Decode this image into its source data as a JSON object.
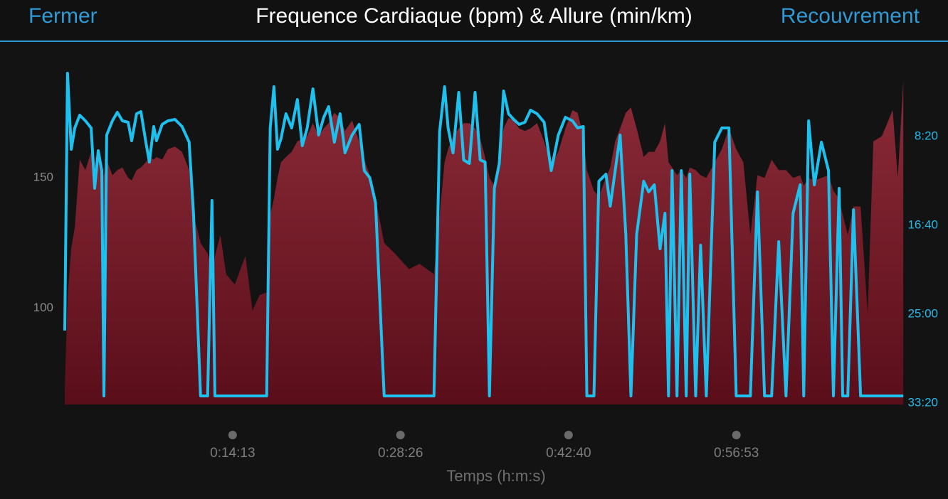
{
  "header": {
    "left_button": "Fermer",
    "right_button": "Recouvrement"
  },
  "chart_data": {
    "type": "line",
    "title": "Frequence Cardiaque (bpm) & Allure (min/km)",
    "x_label": "Temps (h:m:s)",
    "x": [
      0,
      14,
      33,
      51,
      76,
      105,
      134,
      152,
      170,
      188,
      199,
      213,
      242,
      267,
      293,
      322,
      340,
      365,
      387,
      412,
      430,
      452,
      466,
      495,
      524,
      560,
      596,
      632,
      654,
      690,
      726,
      748,
      763,
      791,
      820,
      864,
      918,
      954,
      990,
      1026,
      1044,
      1063,
      1081,
      1099,
      1124,
      1153,
      1182,
      1207,
      1232,
      1261,
      1290,
      1316,
      1341,
      1370,
      1399,
      1424,
      1460,
      1496,
      1522,
      1550,
      1579,
      1623,
      1677,
      1749,
      1803,
      1876,
      1905,
      1930,
      1948,
      1973,
      2002,
      2027,
      2056,
      2085,
      2111,
      2136,
      2158,
      2183,
      2208,
      2230,
      2255,
      2281,
      2309,
      2338,
      2367,
      2400,
      2436,
      2472,
      2508,
      2544,
      2580,
      2606,
      2635,
      2653,
      2689,
      2714,
      2750,
      2772,
      2797,
      2822,
      2851,
      2877,
      2906,
      2942,
      2967,
      2996,
      3025,
      3050,
      3068,
      3086,
      3111,
      3133,
      3158,
      3176,
      3206,
      3231,
      3260,
      3303,
      3339,
      3375,
      3412,
      3448,
      3484,
      3520,
      3556,
      3592,
      3628,
      3665,
      3701,
      3737,
      3755,
      3780,
      3809,
      3845,
      3881,
      3906,
      3935,
      3953,
      3979,
      4008,
      4044,
      4080,
      4109,
      4152,
      4207,
      4233,
      4261
    ],
    "series": [
      {
        "type": "area",
        "axis": "y",
        "color": "#8c2b38",
        "values": [
          69,
          104,
          123,
          131,
          157,
          153,
          160,
          151,
          161,
          153,
          151,
          157,
          151,
          153,
          154,
          150,
          149,
          153,
          154,
          156,
          158,
          157,
          158,
          157,
          161,
          162,
          160,
          153,
          136,
          125,
          121,
          115,
          120,
          128,
          113,
          109,
          120,
          99,
          105,
          106,
          136,
          142,
          150,
          156,
          158,
          160,
          164,
          165,
          166,
          171,
          166,
          169,
          171,
          175,
          173,
          168,
          172,
          164,
          157,
          151,
          142,
          125,
          121,
          115,
          117,
          113,
          136,
          156,
          161,
          166,
          169,
          171,
          171,
          169,
          165,
          158,
          150,
          147,
          158,
          169,
          173,
          172,
          169,
          168,
          169,
          171,
          164,
          155,
          160,
          169,
          176,
          175,
          166,
          153,
          145,
          143,
          150,
          154,
          164,
          169,
          175,
          177,
          169,
          158,
          160,
          160,
          164,
          171,
          156,
          154,
          151,
          153,
          150,
          154,
          153,
          151,
          150,
          156,
          161,
          169,
          161,
          156,
          128,
          151,
          150,
          157,
          153,
          153,
          150,
          151,
          147,
          150,
          149,
          150,
          151,
          145,
          142,
          136,
          128,
          139,
          139,
          98,
          164,
          166,
          176,
          150,
          187
        ]
      },
      {
        "type": "line",
        "axis": "y2",
        "color": "#1ec0ee",
        "values": [
          1592,
          144,
          572,
          452,
          380,
          412,
          452,
          792,
          580,
          692,
          1960,
          492,
          412,
          364,
          412,
          420,
          524,
          372,
          360,
          532,
          644,
          444,
          524,
          432,
          412,
          404,
          444,
          532,
          932,
          1960,
          1960,
          860,
          1960,
          1960,
          1960,
          1960,
          1960,
          1960,
          1960,
          1960,
          452,
          220,
          572,
          512,
          372,
          452,
          292,
          552,
          452,
          232,
          492,
          392,
          332,
          532,
          372,
          592,
          492,
          432,
          692,
          732,
          872,
          1960,
          1960,
          1960,
          1960,
          1960,
          472,
          220,
          452,
          592,
          252,
          632,
          652,
          252,
          632,
          644,
          1960,
          792,
          652,
          244,
          372,
          404,
          432,
          420,
          352,
          372,
          420,
          692,
          492,
          392,
          412,
          452,
          444,
          1960,
          1960,
          752,
          712,
          892,
          692,
          492,
          1052,
          1960,
          1052,
          752,
          812,
          772,
          1132,
          932,
          1960,
          692,
          1960,
          692,
          1960,
          712,
          1960,
          1112,
          1960,
          532,
          452,
          452,
          1960,
          1960,
          1960,
          812,
          1960,
          1960,
          1092,
          1960,
          932,
          772,
          1960,
          412,
          772,
          532,
          692,
          1960,
          792,
          1960,
          1960,
          912,
          1960,
          1960,
          1960,
          1960,
          1960,
          1960,
          1960
        ]
      }
    ],
    "xlim": [
      0,
      4264
    ],
    "xticks": [
      {
        "value": 853,
        "label": "0:14:13"
      },
      {
        "value": 1706,
        "label": "0:28:26"
      },
      {
        "value": 2560,
        "label": "0:42:40"
      },
      {
        "value": 3413,
        "label": "0:56:53"
      }
    ],
    "ylim": [
      63,
      191
    ],
    "yticks": [
      100,
      150
    ],
    "y2lim": [
      2008,
      132
    ],
    "y2ticks": [
      {
        "value": 500,
        "label": "8:20"
      },
      {
        "value": 1000,
        "label": "16:40"
      },
      {
        "value": 1500,
        "label": "25:00"
      },
      {
        "value": 2000,
        "label": "33:20"
      }
    ],
    "grid": false
  }
}
